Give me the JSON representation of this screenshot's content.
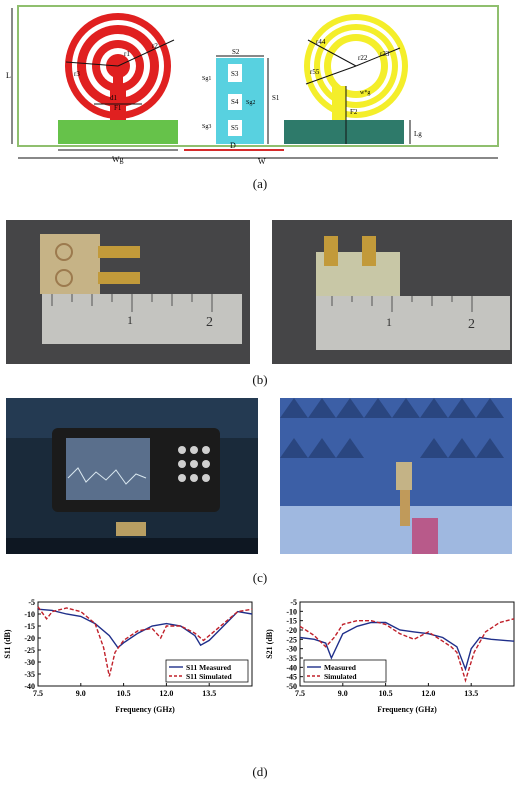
{
  "captions": {
    "a": "(a)",
    "b": "(b)",
    "c": "(c)",
    "d": "(d)"
  },
  "schematic": {
    "labels": {
      "L": "L",
      "F1": "F1",
      "d1": "d1",
      "F2": "F2",
      "Wg": "Wg",
      "W": "W",
      "D": "D",
      "S1": "S1",
      "S2": "S2",
      "S3": "S3",
      "S4": "S4",
      "S5": "S5",
      "Sg1": "Sg1",
      "Sg2": "Sg2",
      "Sg3": "Sg3",
      "Lg": "Lg",
      "r1": "r1",
      "r2": "r2",
      "r3": "r3",
      "r22": "r22",
      "r33": "r33",
      "r44": "r44",
      "r55": "r55",
      "wg": "w*g"
    },
    "colors": {
      "left_ring": "#e02020",
      "right_ring": "#f4ee2a",
      "ground_left": "#66c24a",
      "ground_right": "#2e7a6a",
      "isolator": "#58d1e0",
      "D_arrow": "#d62b2b"
    }
  },
  "photos": {
    "b_left": {
      "ruler_numbers": [
        "1",
        "2"
      ]
    },
    "b_right": {
      "ruler_numbers": [
        "1",
        "2"
      ]
    }
  },
  "chart_data": [
    {
      "type": "line",
      "xlabel": "Frequency (GHz)",
      "ylabel": "S11 (dB)",
      "xlim": [
        7.5,
        15.0
      ],
      "ylim": [
        -40,
        -5
      ],
      "xticks": [
        "7.5",
        "9.0",
        "10.5",
        "12.0",
        "13.5"
      ],
      "yticks": [
        "-5",
        "-10",
        "-15",
        "-20",
        "-25",
        "-30",
        "-35",
        "-40"
      ],
      "legend_position": "bottom-right",
      "series": [
        {
          "name": "S11 Measured",
          "style": "solid",
          "color": "#1f2f8a",
          "x": [
            7.5,
            8.0,
            8.5,
            9.0,
            9.5,
            10.0,
            10.3,
            10.5,
            11.0,
            11.5,
            12.0,
            12.5,
            13.0,
            13.2,
            13.5,
            14.0,
            14.5,
            15.0
          ],
          "y": [
            -8,
            -8.5,
            -10,
            -11,
            -14,
            -19,
            -24,
            -22,
            -18,
            -15,
            -14,
            -15,
            -19,
            -23,
            -21,
            -15,
            -9,
            -10
          ]
        },
        {
          "name": "S11 Simulated",
          "style": "dashed",
          "color": "#c0202a",
          "x": [
            7.5,
            7.8,
            8.0,
            8.5,
            9.0,
            9.5,
            9.8,
            10.0,
            10.2,
            10.5,
            11.0,
            11.5,
            11.8,
            12.0,
            12.5,
            13.0,
            13.3,
            13.6,
            14.0,
            14.5,
            15.0
          ],
          "y": [
            -7,
            -12,
            -9,
            -7.5,
            -9,
            -14,
            -24,
            -36,
            -26,
            -21,
            -17,
            -16,
            -20,
            -15,
            -15,
            -18,
            -21,
            -18,
            -14,
            -9,
            -8
          ]
        }
      ]
    },
    {
      "type": "line",
      "xlabel": "Frequency (GHz)",
      "ylabel": "S21 (dB)",
      "xlim": [
        7.5,
        15.0
      ],
      "ylim": [
        -50,
        -5
      ],
      "xticks": [
        "7.5",
        "9.0",
        "10.5",
        "12.0",
        "13.5"
      ],
      "yticks": [
        "-5",
        "-10",
        "-15",
        "-20",
        "-25",
        "-30",
        "-35",
        "-40",
        "-45",
        "-50"
      ],
      "legend_position": "bottom-left",
      "series": [
        {
          "name": "Measured",
          "style": "solid",
          "color": "#1f2f8a",
          "x": [
            7.5,
            8.0,
            8.4,
            8.6,
            9.0,
            9.5,
            10.0,
            10.5,
            11.0,
            11.5,
            12.0,
            12.5,
            13.0,
            13.3,
            13.5,
            13.8,
            14.2,
            15.0
          ],
          "y": [
            -24,
            -25,
            -27,
            -35,
            -22,
            -18,
            -16,
            -16,
            -20,
            -21,
            -22,
            -24,
            -29,
            -41,
            -30,
            -24,
            -25,
            -26
          ]
        },
        {
          "name": "Simulated",
          "style": "dashed",
          "color": "#c0202a",
          "x": [
            7.5,
            8.0,
            8.4,
            8.7,
            9.0,
            9.5,
            10.0,
            10.5,
            11.0,
            11.5,
            12.0,
            12.5,
            12.8,
            13.0,
            13.3,
            13.6,
            14.0,
            14.5,
            15.0
          ],
          "y": [
            -18,
            -23,
            -29,
            -24,
            -17,
            -15,
            -15,
            -17,
            -22,
            -25,
            -21,
            -26,
            -29,
            -32,
            -47,
            -32,
            -21,
            -16,
            -14
          ]
        }
      ]
    }
  ]
}
